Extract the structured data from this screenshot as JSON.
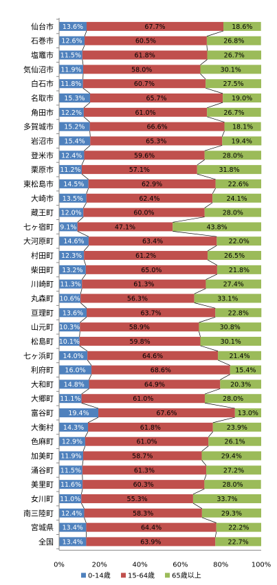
{
  "chart_data": {
    "type": "bar",
    "orientation": "horizontal",
    "stacked": "percent",
    "categories": [
      "仙台市",
      "石巻市",
      "塩竈市",
      "気仙沼市",
      "白石市",
      "名取市",
      "角田市",
      "多賀城市",
      "岩沼市",
      "登米市",
      "栗原市",
      "東松島市",
      "大崎市",
      "蔵王町",
      "七ヶ宿町",
      "大河原町",
      "村田町",
      "柴田町",
      "川崎町",
      "丸森町",
      "亘理町",
      "山元町",
      "松島町",
      "七ヶ浜町",
      "利府町",
      "大和町",
      "大郷町",
      "富谷町",
      "大衡村",
      "色麻町",
      "加美町",
      "涌谷町",
      "美里町",
      "女川町",
      "南三陸町",
      "宮城県",
      "全国"
    ],
    "series": [
      {
        "name": "0-14歳",
        "color": "#4f81bd",
        "values": [
          13.6,
          12.6,
          11.5,
          11.9,
          11.8,
          15.3,
          12.2,
          15.2,
          15.4,
          12.4,
          11.2,
          14.5,
          13.5,
          12.0,
          9.1,
          14.6,
          12.3,
          13.2,
          11.3,
          10.6,
          13.6,
          10.3,
          10.1,
          14.0,
          16.0,
          14.8,
          11.1,
          19.4,
          14.3,
          12.9,
          11.9,
          11.5,
          11.6,
          11.0,
          12.4,
          13.4,
          13.4
        ]
      },
      {
        "name": "15-64歳",
        "color": "#c0504d",
        "values": [
          67.7,
          60.5,
          61.8,
          58.0,
          60.7,
          65.7,
          61.0,
          66.6,
          65.3,
          59.6,
          57.1,
          62.9,
          62.4,
          60.0,
          47.1,
          63.4,
          61.2,
          65.0,
          61.3,
          56.3,
          63.7,
          58.9,
          59.8,
          64.6,
          68.6,
          64.9,
          61.0,
          67.6,
          61.8,
          61.0,
          58.7,
          61.3,
          60.3,
          55.3,
          58.3,
          64.4,
          63.9
        ]
      },
      {
        "name": "65歳以上",
        "color": "#9bbb59",
        "values": [
          18.6,
          26.8,
          26.7,
          30.1,
          27.5,
          19.0,
          26.7,
          18.1,
          19.4,
          28.0,
          31.8,
          22.6,
          24.1,
          28.0,
          43.8,
          22.0,
          26.5,
          21.8,
          27.4,
          33.1,
          22.8,
          30.8,
          30.1,
          21.4,
          15.4,
          20.3,
          28.0,
          13.0,
          23.9,
          26.1,
          29.4,
          27.2,
          28.0,
          33.7,
          29.3,
          22.2,
          22.7
        ]
      }
    ],
    "xlim": [
      0,
      100
    ],
    "xticks": [
      "0%",
      "20%",
      "40%",
      "60%",
      "80%",
      "100%"
    ],
    "legend_position": "bottom",
    "series_lines": true,
    "title": "",
    "xlabel": "",
    "ylabel": ""
  }
}
